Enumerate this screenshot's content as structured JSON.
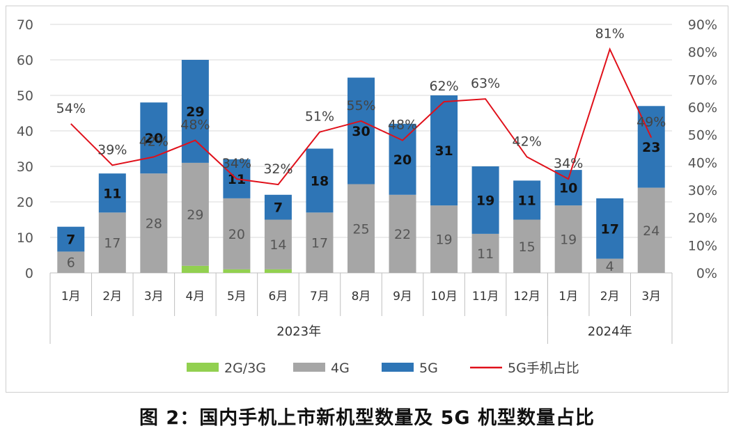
{
  "caption": "图 2：国内手机上市新机型数量及 5G 机型数量占比",
  "chart_data": {
    "type": "bar",
    "stacked": true,
    "categories": [
      "1月",
      "2月",
      "3月",
      "4月",
      "5月",
      "6月",
      "7月",
      "8月",
      "9月",
      "10月",
      "11月",
      "12月",
      "1月",
      "2月",
      "3月"
    ],
    "groups": [
      {
        "label": "2023年",
        "count": 12
      },
      {
        "label": "2024年",
        "count": 3
      }
    ],
    "series": [
      {
        "name": "2G/3G",
        "color": "#92d050",
        "values": [
          0,
          0,
          0,
          2,
          1,
          1,
          0,
          0,
          0,
          0,
          0,
          0,
          0,
          0,
          0
        ],
        "show_labels": false
      },
      {
        "name": "4G",
        "color": "#a6a6a6",
        "values": [
          6,
          17,
          28,
          29,
          20,
          14,
          17,
          25,
          22,
          19,
          11,
          15,
          19,
          4,
          24
        ],
        "show_labels": true
      },
      {
        "name": "5G",
        "color": "#2e75b6",
        "values": [
          7,
          11,
          20,
          29,
          11,
          7,
          18,
          30,
          20,
          31,
          19,
          11,
          10,
          17,
          23
        ],
        "show_labels": true
      }
    ],
    "line_series": {
      "name": "5G手机占比",
      "color": "#e0101a",
      "values": [
        54,
        39,
        42,
        48,
        34,
        32,
        51,
        55,
        48,
        62,
        63,
        42,
        34,
        81,
        49
      ],
      "labels": [
        "54%",
        "39%",
        "42%",
        "48%",
        "34%",
        "32%",
        "51%",
        "55%",
        "48%",
        "62%",
        "63%",
        "42%",
        "34%",
        "81%",
        "49%"
      ]
    },
    "y_left": {
      "min": 0,
      "max": 70,
      "step": 10,
      "ticks": [
        "0",
        "10",
        "20",
        "30",
        "40",
        "50",
        "60",
        "70"
      ]
    },
    "y_right": {
      "min": 0,
      "max": 90,
      "step": 10,
      "ticks": [
        "0%",
        "10%",
        "20%",
        "30%",
        "40%",
        "50%",
        "60%",
        "70%",
        "80%",
        "90%"
      ]
    },
    "legend": [
      "2G/3G",
      "4G",
      "5G",
      "5G手机占比"
    ],
    "legend_position": "bottom"
  }
}
